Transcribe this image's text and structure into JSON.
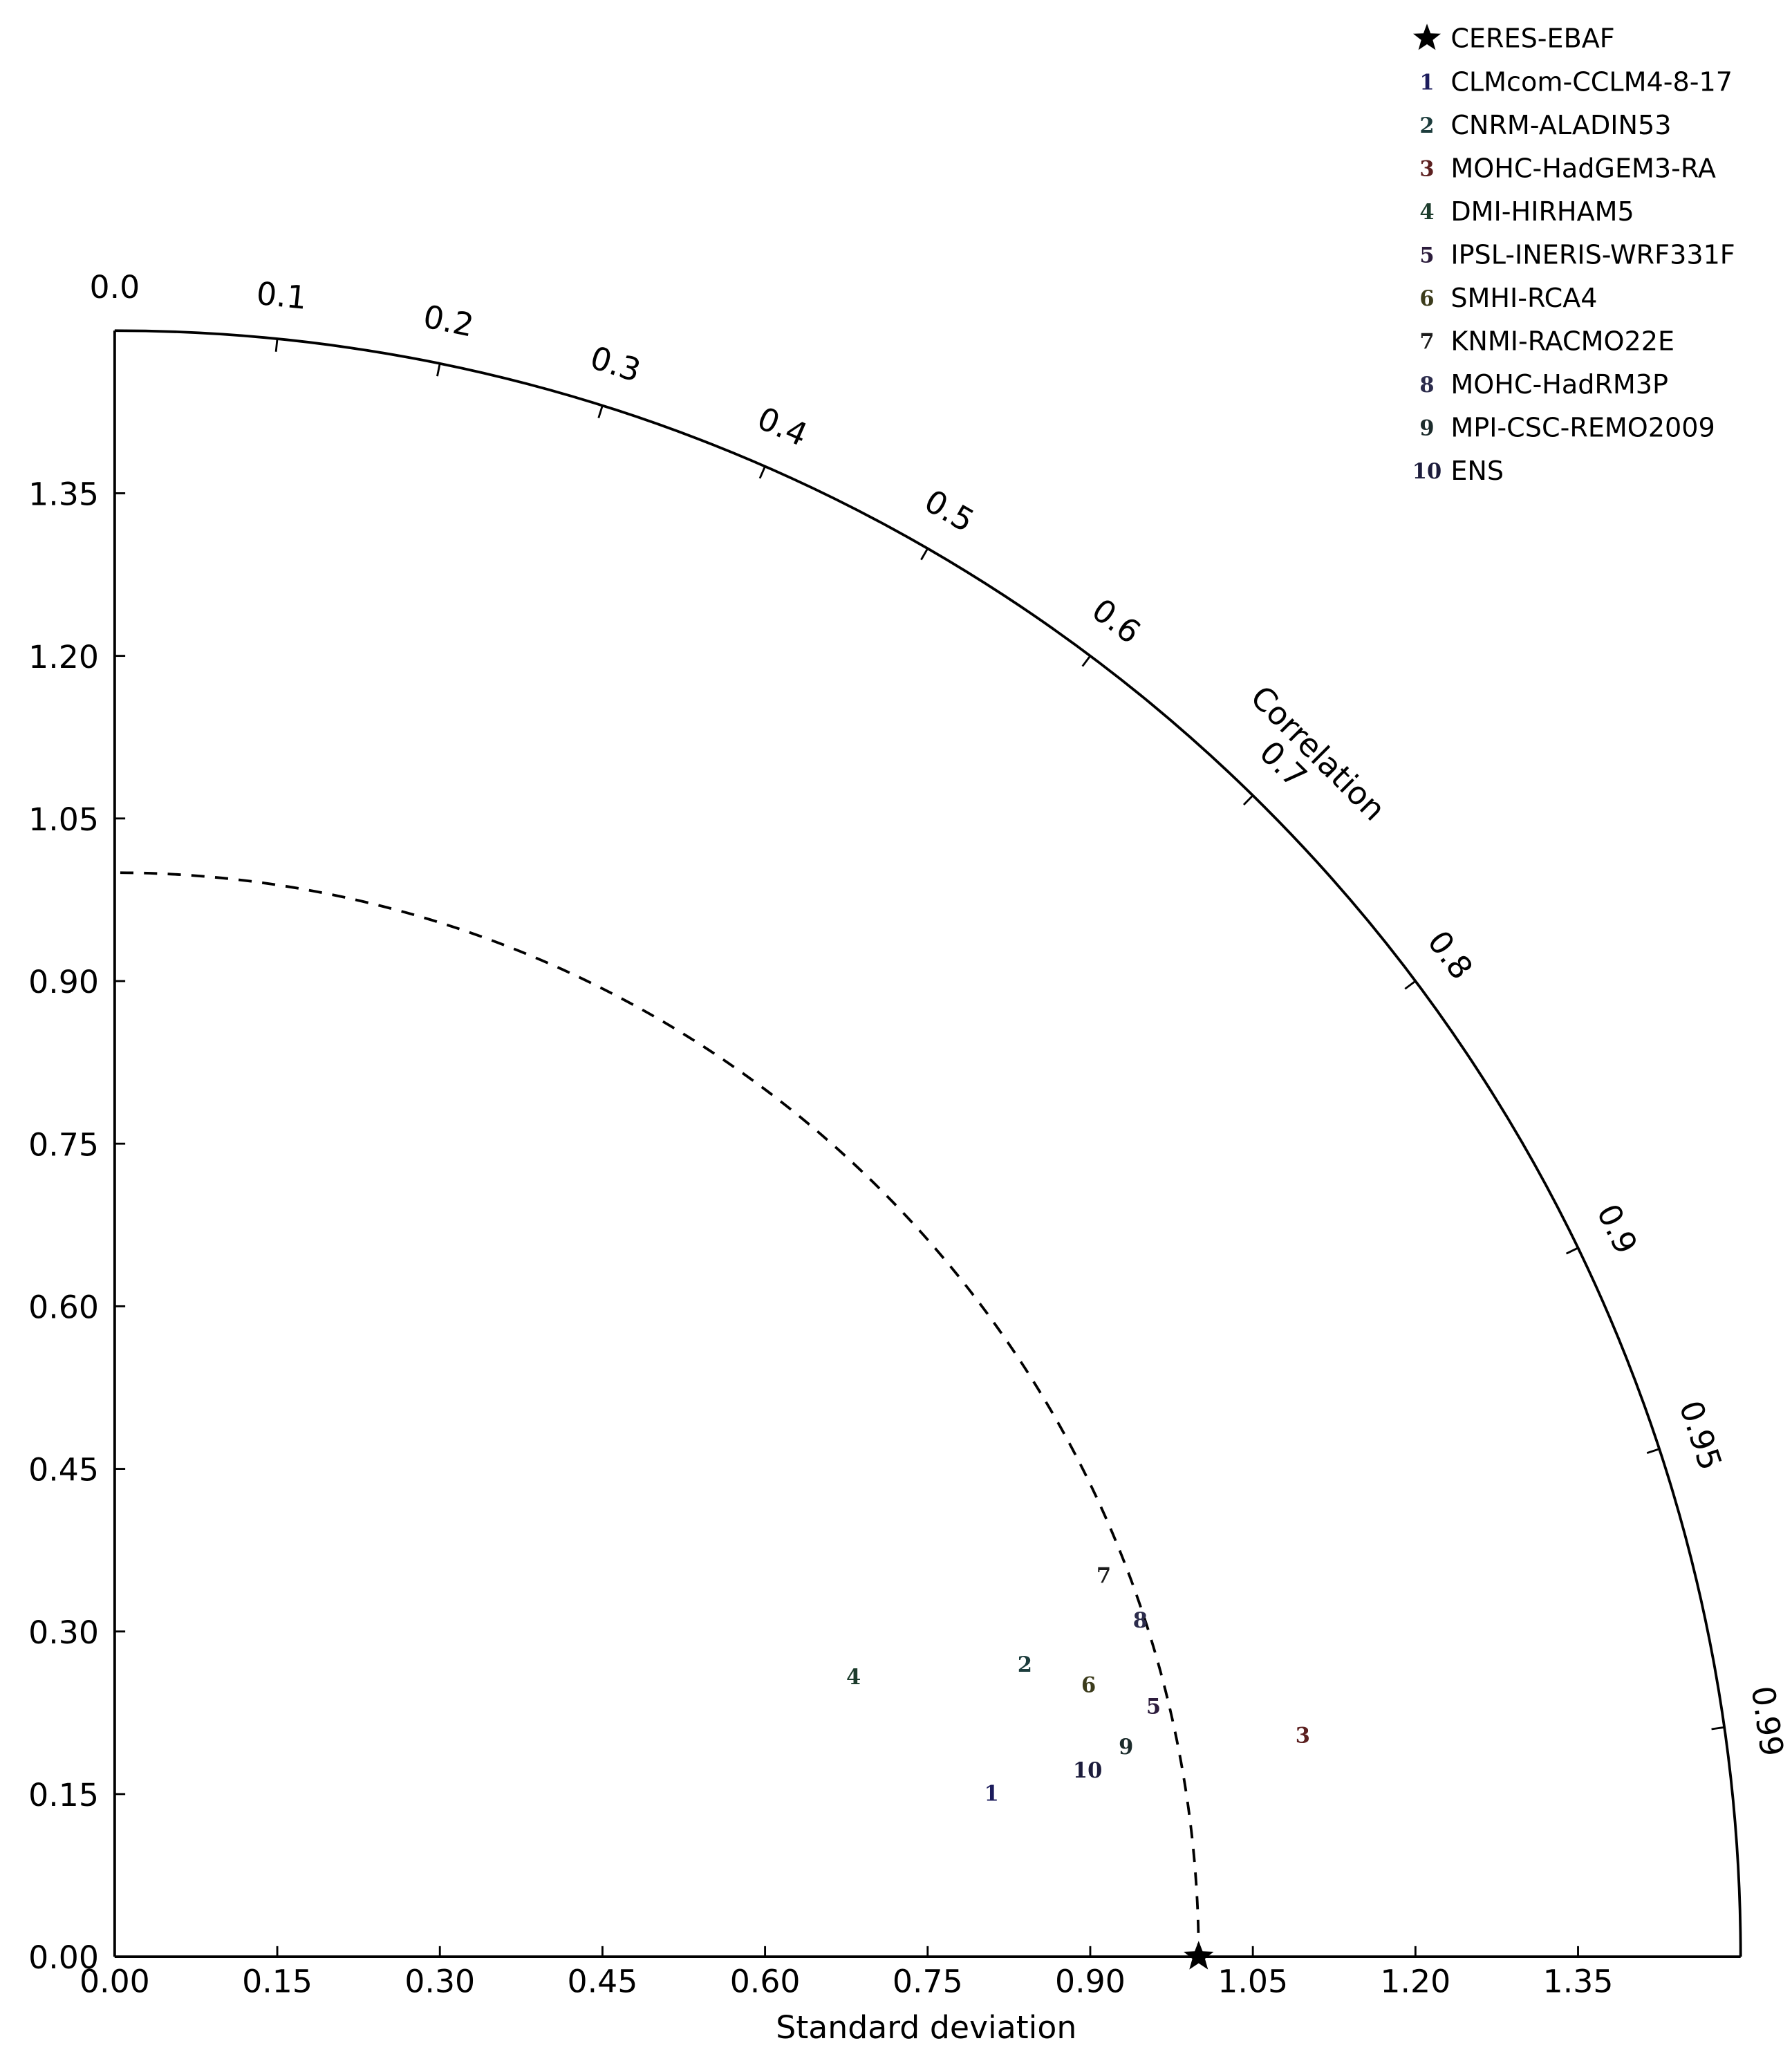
{
  "chart_data": {
    "type": "taylor",
    "xlabel": "Standard deviation",
    "corr_label": "Correlation",
    "xlim": [
      0,
      1.5
    ],
    "ylim": [
      0,
      1.5
    ],
    "xticks": [
      {
        "value": 0,
        "label": "0.00"
      },
      {
        "value": 0.15,
        "label": "0.15"
      },
      {
        "value": 0.3,
        "label": "0.30"
      },
      {
        "value": 0.45,
        "label": "0.45"
      },
      {
        "value": 0.6,
        "label": "0.60"
      },
      {
        "value": 0.75,
        "label": "0.75"
      },
      {
        "value": 0.9,
        "label": "0.90"
      },
      {
        "value": 1.05,
        "label": "1.05"
      },
      {
        "value": 1.2,
        "label": "1.20"
      },
      {
        "value": 1.35,
        "label": "1.35"
      }
    ],
    "yticks": [
      {
        "value": 0,
        "label": "0.00"
      },
      {
        "value": 0.15,
        "label": "0.15"
      },
      {
        "value": 0.3,
        "label": "0.30"
      },
      {
        "value": 0.45,
        "label": "0.45"
      },
      {
        "value": 0.6,
        "label": "0.60"
      },
      {
        "value": 0.75,
        "label": "0.75"
      },
      {
        "value": 0.9,
        "label": "0.90"
      },
      {
        "value": 1.05,
        "label": "1.05"
      },
      {
        "value": 1.2,
        "label": "1.20"
      },
      {
        "value": 1.35,
        "label": "1.35"
      }
    ],
    "corr_ticks": [
      {
        "value": 0,
        "label": "0.0"
      },
      0.1,
      0.2,
      0.3,
      0.4,
      0.5,
      0.6,
      0.7,
      0.8,
      0.9,
      0.95,
      0.99
    ],
    "reference": {
      "name": "CERES-EBAF",
      "std": 1.0,
      "corr": 1.0,
      "color": "#000000"
    },
    "series": [
      {
        "name": "CLMcom-CCLM4-8-17",
        "marker": "1",
        "color": "#1c1c5c",
        "std": 0.823,
        "corr": 0.983
      },
      {
        "name": "CNRM-ALADIN53",
        "marker": "2",
        "color": "#1c3c3c",
        "std": 0.882,
        "corr": 0.952
      },
      {
        "name": "MOHC-HadGEM3-RA",
        "marker": "3",
        "color": "#5c2020",
        "std": 1.115,
        "corr": 0.983
      },
      {
        "name": "DMI-HIRHAM5",
        "marker": "4",
        "color": "#1c3c2c",
        "std": 0.729,
        "corr": 0.935
      },
      {
        "name": "IPSL-INERIS-WRF331F",
        "marker": "5",
        "color": "#2c1c3c",
        "std": 0.986,
        "corr": 0.972
      },
      {
        "name": "SMHI-RCA4",
        "marker": "6",
        "color": "#3c3c1c",
        "std": 0.933,
        "corr": 0.963
      },
      {
        "name": "KNMI-RACMO22E",
        "marker": "7",
        "color": "#1c1c1c",
        "std": 0.978,
        "corr": 0.933
      },
      {
        "name": "MOHC-HadRM3P",
        "marker": "8",
        "color": "#2c2c4c",
        "std": 0.996,
        "corr": 0.95
      },
      {
        "name": "MPI-CSC-REMO2009",
        "marker": "9",
        "color": "#1c2c2c",
        "std": 0.953,
        "corr": 0.979
      },
      {
        "name": "ENS",
        "marker": "10",
        "color": "#1c1c3c",
        "std": 0.914,
        "corr": 0.982
      }
    ]
  }
}
